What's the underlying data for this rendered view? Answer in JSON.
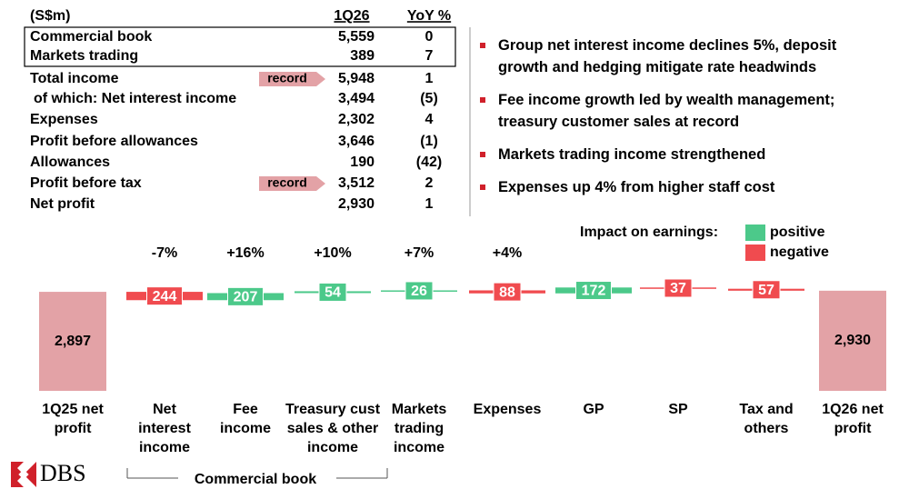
{
  "table": {
    "header": [
      "(S$m)",
      "1Q26",
      "YoY %"
    ],
    "rows": [
      {
        "label": "Commercial book",
        "value": "5,559",
        "yoy": "0"
      },
      {
        "label": "Markets trading",
        "value": "389",
        "yoy": "7"
      },
      {
        "label": "Total income",
        "tag": "record",
        "value": "5,948",
        "yoy": "1"
      },
      {
        "label": "of which: Net interest income",
        "value": "3,494",
        "yoy": "(5)"
      },
      {
        "label": "Expenses",
        "value": "2,302",
        "yoy": "4"
      },
      {
        "label": "Profit before allowances",
        "value": "3,646",
        "yoy": "(1)"
      },
      {
        "label": "Allowances",
        "value": "190",
        "yoy": "(42)"
      },
      {
        "label": "Profit before tax",
        "tag": "record",
        "value": "3,512",
        "yoy": "2"
      },
      {
        "label": "Net profit",
        "value": "2,930",
        "yoy": "1"
      }
    ]
  },
  "bullets": [
    "Group net interest income declines 5%, deposit growth and hedging mitigate rate headwinds",
    "Fee income growth led by wealth management; treasury customer sales at record",
    "Markets trading income strengthened",
    "Expenses up 4% from higher staff cost"
  ],
  "chart_data": {
    "type": "waterfall",
    "legend_title": "Impact on earnings:",
    "categories": [
      "1Q25 net profit",
      "Net interest income",
      "Fee income",
      "Treasury cust sales & other income",
      "Markets trading income",
      "Expenses",
      "GP",
      "SP",
      "Tax and others",
      "1Q26 net profit"
    ],
    "growth_labels": [
      null,
      "-7%",
      "+16%",
      "+10%",
      "+7%",
      "+4%",
      null,
      null,
      null,
      null
    ],
    "totals": {
      "color": "#e3a2a6",
      "values": [
        2897,
        null,
        null,
        null,
        null,
        null,
        null,
        null,
        null,
        2930
      ],
      "value_labels": [
        "2,897",
        null,
        null,
        null,
        null,
        null,
        null,
        null,
        null,
        "2,930"
      ]
    },
    "series": [
      {
        "name": "positive",
        "color": "#4cc98a",
        "values": [
          null,
          null,
          207,
          54,
          26,
          null,
          172,
          null,
          null,
          null
        ]
      },
      {
        "name": "negative",
        "color": "#f04b4f",
        "values": [
          null,
          244,
          null,
          null,
          null,
          88,
          null,
          37,
          57,
          null
        ]
      }
    ],
    "group_label": "Commercial book"
  },
  "logo": "DBS"
}
